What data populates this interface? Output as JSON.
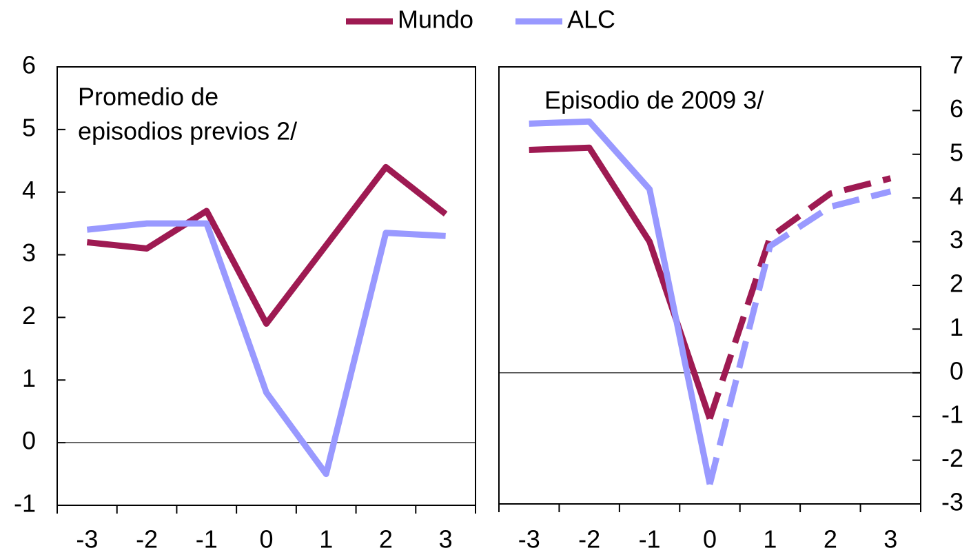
{
  "chart_data": [
    {
      "type": "line",
      "title": [
        "Promedio de",
        "episodios previos 2/"
      ],
      "categories": [
        "-3",
        "-2",
        "-1",
        "0",
        "1",
        "2",
        "3"
      ],
      "series": [
        {
          "name": "Mundo",
          "color": "#9e1a52",
          "values": [
            3.2,
            3.1,
            3.7,
            1.9,
            3.15,
            4.4,
            3.65
          ]
        },
        {
          "name": "ALC",
          "color": "#9999ff",
          "values": [
            3.4,
            3.5,
            3.5,
            0.8,
            -0.5,
            3.35,
            3.3
          ]
        }
      ],
      "ylim": [
        -1,
        6
      ],
      "yticks": [
        -1,
        0,
        1,
        2,
        3,
        4,
        5,
        6
      ],
      "y_axis": "left"
    },
    {
      "type": "line",
      "title": [
        "Episodio de 2009 3/"
      ],
      "categories": [
        "-3",
        "-2",
        "-1",
        "0",
        "1",
        "2",
        "3"
      ],
      "series": [
        {
          "color": "#9e1a52",
          "values": [
            5.1,
            5.15,
            3.0,
            -1.05,
            3.1,
            4.1,
            4.45
          ]
        },
        {
          "color": "#9999ff",
          "values": [
            5.7,
            5.75,
            4.2,
            -2.55,
            2.9,
            3.8,
            4.15
          ]
        }
      ],
      "dashed_from": 3,
      "ylim": [
        -3,
        7
      ],
      "yticks": [
        -3,
        -2,
        -1,
        0,
        1,
        2,
        3,
        4,
        5,
        6,
        7
      ],
      "y_axis": "right"
    }
  ]
}
